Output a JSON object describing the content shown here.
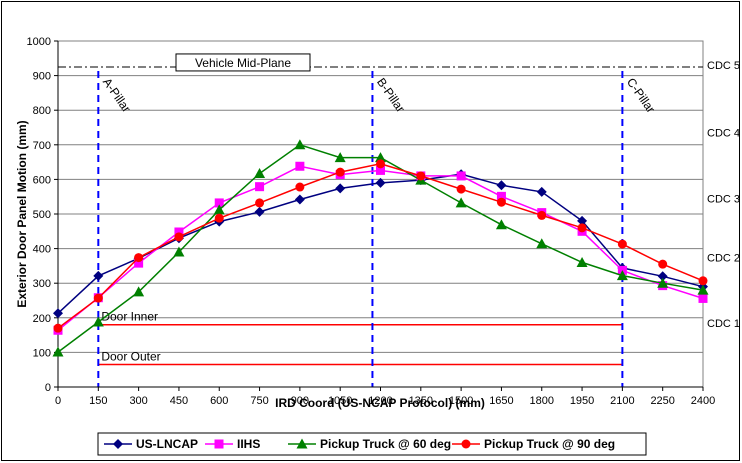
{
  "chart_data": {
    "type": "line",
    "xlabel": "IRD Coord (US-NCAP Protocol) (mm)",
    "ylabel": "Exterior Door Panel Motion (mm)",
    "xlim": [
      0,
      2400
    ],
    "ylim": [
      0,
      1000
    ],
    "x_ticks": [
      "0",
      "150",
      "300",
      "450",
      "600",
      "750",
      "900",
      "1050",
      "1200",
      "1350",
      "1500",
      "1650",
      "1800",
      "1950",
      "2100",
      "2250",
      "2400"
    ],
    "y_ticks": [
      "0",
      "100",
      "200",
      "300",
      "400",
      "500",
      "600",
      "700",
      "800",
      "900",
      "1000"
    ],
    "grid": "horizontal",
    "legend_position": "bottom",
    "series": [
      {
        "name": "US-LNCAP",
        "color": "#000080",
        "marker": "diamond",
        "x": [
          0,
          150,
          300,
          450,
          600,
          750,
          900,
          1050,
          1200,
          1350,
          1500,
          1650,
          1800,
          1950,
          2100,
          2250,
          2400
        ],
        "y": [
          213,
          321,
          372,
          430,
          478,
          506,
          542,
          574,
          590,
          598,
          615,
          583,
          564,
          480,
          344,
          320,
          290
        ]
      },
      {
        "name": "IIHS",
        "color": "#FF00FF",
        "marker": "square",
        "x": [
          0,
          150,
          300,
          450,
          600,
          750,
          900,
          1050,
          1200,
          1350,
          1500,
          1650,
          1800,
          1950,
          2100,
          2250,
          2400
        ],
        "y": [
          164,
          258,
          358,
          448,
          532,
          579,
          638,
          614,
          626,
          610,
          610,
          551,
          504,
          450,
          337,
          293,
          256
        ]
      },
      {
        "name": "Pickup Truck @ 60 deg",
        "color": "#008000",
        "marker": "triangle",
        "x": [
          0,
          150,
          300,
          450,
          600,
          750,
          900,
          1050,
          1200,
          1350,
          1500,
          1650,
          1800,
          1950,
          2100,
          2250,
          2400
        ],
        "y": [
          101,
          188,
          275,
          390,
          512,
          617,
          700,
          663,
          663,
          598,
          532,
          469,
          414,
          360,
          322,
          300,
          280
        ]
      },
      {
        "name": "Pickup Truck @ 90 deg",
        "color": "#FF0000",
        "marker": "circle",
        "x": [
          0,
          150,
          300,
          450,
          600,
          750,
          900,
          1050,
          1200,
          1350,
          1500,
          1650,
          1800,
          1950,
          2100,
          2250,
          2400
        ],
        "y": [
          170,
          257,
          374,
          434,
          488,
          532,
          578,
          621,
          645,
          610,
          572,
          534,
          496,
          460,
          413,
          355,
          307
        ]
      }
    ],
    "reference_lines": {
      "mid_plane": {
        "label": "Vehicle Mid-Plane",
        "y": 925
      },
      "door_inner": {
        "label": "Door Inner",
        "y": 180,
        "x_start": 150,
        "x_end": 2100
      },
      "door_outer": {
        "label": "Door Outer",
        "y": 65,
        "x_start": 150,
        "x_end": 2100
      },
      "pillars": [
        {
          "label": "A-Pillar",
          "x": 150
        },
        {
          "label": "B-Pillar",
          "x": 1170
        },
        {
          "label": "C-Pillar",
          "x": 2100
        }
      ]
    },
    "cdc_labels": [
      {
        "label": "CDC 5",
        "y": 930
      },
      {
        "label": "CDC 4",
        "y": 735
      },
      {
        "label": "CDC 3",
        "y": 545
      },
      {
        "label": "CDC 2",
        "y": 375
      },
      {
        "label": "CDC 1",
        "y": 185
      }
    ]
  }
}
